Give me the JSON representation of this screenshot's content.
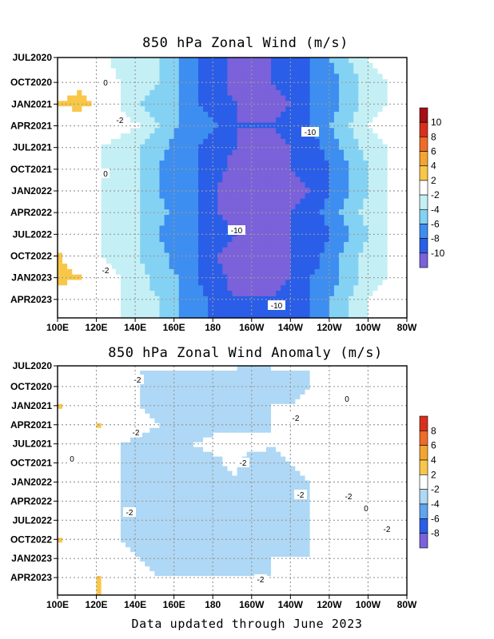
{
  "footer": "Data updated through June 2023",
  "chart_data": [
    {
      "type": "heatmap",
      "title": "850 hPa Zonal Wind (m/s)",
      "x_ticks": [
        "100E",
        "120E",
        "140E",
        "160E",
        "180",
        "160W",
        "140W",
        "120W",
        "100W",
        "80W"
      ],
      "y_ticks": [
        "JUL2020",
        "OCT2020",
        "JAN2021",
        "APR2021",
        "JUL2021",
        "OCT2021",
        "JAN2022",
        "APR2022",
        "JUL2022",
        "OCT2022",
        "JAN2023",
        "APR2023"
      ],
      "colorbar": {
        "labels": [
          "10",
          "8",
          "6",
          "4",
          "2",
          "-2",
          "-4",
          "-6",
          "-8",
          "-10"
        ],
        "colors": [
          "#a50f15",
          "#d7301f",
          "#ef6b28",
          "#f4a531",
          "#f9c748",
          "#ffffff",
          "#c4f0f5",
          "#84d2f3",
          "#3d8ef0",
          "#2a5ee8",
          "#7b61da"
        ]
      },
      "contour_labels": [
        "0",
        "-2",
        "0",
        "-10",
        "-10",
        "-2",
        "-10"
      ],
      "longitudes": [
        100,
        110,
        120,
        130,
        140,
        150,
        160,
        170,
        180,
        190,
        200,
        210,
        220,
        230,
        240,
        250,
        260,
        270,
        280
      ],
      "rows": [
        {
          "month": "JUL2020",
          "u": [
            0,
            0,
            -1,
            -3,
            -3,
            -4,
            -6,
            -8,
            -9,
            -11,
            -11,
            -10,
            -9,
            -8,
            -6,
            -4,
            -2,
            -1,
            0
          ]
        },
        {
          "month": "OCT2020",
          "u": [
            0,
            1,
            0,
            -2,
            -3,
            -4,
            -6,
            -8,
            -9,
            -11,
            -11,
            -10,
            -9,
            -8,
            -7,
            -5,
            -3,
            -2,
            -1
          ]
        },
        {
          "month": "JAN2021",
          "u": [
            2,
            3,
            1,
            -2,
            -4,
            -5,
            -6,
            -8,
            -9,
            -10,
            -11,
            -11,
            -10,
            -8,
            -7,
            -5,
            -3,
            -2,
            -1
          ]
        },
        {
          "month": "APR2021",
          "u": [
            0,
            0,
            0,
            -1,
            -2,
            -4,
            -6,
            -7,
            -8,
            -10,
            -10,
            -10,
            -9,
            -8,
            -6,
            -4,
            -2,
            -1,
            0
          ]
        },
        {
          "month": "JUL2021",
          "u": [
            0,
            -1,
            -2,
            -3,
            -4,
            -5,
            -7,
            -8,
            -9,
            -10,
            -11,
            -11,
            -10,
            -9,
            -7,
            -5,
            -3,
            -2,
            -1
          ]
        },
        {
          "month": "OCT2021",
          "u": [
            0,
            -1,
            -2,
            -3,
            -4,
            -6,
            -7,
            -8,
            -9,
            -11,
            -11,
            -11,
            -10,
            -9,
            -8,
            -6,
            -4,
            -2,
            -1
          ]
        },
        {
          "month": "JAN2022",
          "u": [
            0,
            -1,
            -2,
            -3,
            -4,
            -6,
            -7,
            -8,
            -10,
            -11,
            -12,
            -12,
            -11,
            -10,
            -8,
            -6,
            -4,
            -2,
            -1
          ]
        },
        {
          "month": "APR2022",
          "u": [
            0,
            -1,
            -2,
            -3,
            -4,
            -5,
            -7,
            -8,
            -10,
            -11,
            -11,
            -11,
            -10,
            -9,
            -7,
            -5,
            -3,
            -2,
            -1
          ]
        },
        {
          "month": "JUL2022",
          "u": [
            0,
            -1,
            -2,
            -3,
            -4,
            -6,
            -7,
            -8,
            -9,
            -10,
            -11,
            -11,
            -10,
            -9,
            -8,
            -6,
            -4,
            -2,
            -1
          ]
        },
        {
          "month": "OCT2022",
          "u": [
            2,
            0,
            -2,
            -3,
            -4,
            -5,
            -7,
            -8,
            -10,
            -11,
            -11,
            -11,
            -10,
            -9,
            -7,
            -5,
            -3,
            -2,
            -1
          ]
        },
        {
          "month": "JAN2023",
          "u": [
            3,
            2,
            0,
            -2,
            -3,
            -5,
            -6,
            -8,
            -9,
            -11,
            -11,
            -11,
            -10,
            -8,
            -7,
            -5,
            -3,
            -2,
            -1
          ]
        },
        {
          "month": "APR2023",
          "u": [
            0,
            0,
            -1,
            -2,
            -3,
            -4,
            -6,
            -7,
            -9,
            -10,
            -10,
            -10,
            -9,
            -8,
            -6,
            -4,
            -2,
            -1,
            0
          ]
        }
      ]
    },
    {
      "type": "heatmap",
      "title": "850 hPa Zonal Wind Anomaly (m/s)",
      "x_ticks": [
        "100E",
        "120E",
        "140E",
        "160E",
        "180",
        "160W",
        "140W",
        "120W",
        "100W",
        "80W"
      ],
      "y_ticks": [
        "JUL2020",
        "OCT2020",
        "JAN2021",
        "APR2021",
        "JUL2021",
        "OCT2021",
        "JAN2022",
        "APR2022",
        "JUL2022",
        "OCT2022",
        "JAN2023",
        "APR2023"
      ],
      "colorbar": {
        "labels": [
          "8",
          "6",
          "4",
          "2",
          "-2",
          "-4",
          "-6",
          "-8"
        ],
        "colors": [
          "#d7301f",
          "#ef6b28",
          "#f4a531",
          "#f9c748",
          "#ffffff",
          "#aed8f5",
          "#5fa4ee",
          "#2a5ee8",
          "#7b61da"
        ]
      },
      "contour_labels": [
        "-2",
        "0",
        "-2",
        "-2",
        "0",
        "-2",
        "-2",
        "-2",
        "-2",
        "0",
        "-2",
        "-2"
      ],
      "longitudes": [
        100,
        110,
        120,
        130,
        140,
        150,
        160,
        170,
        180,
        190,
        200,
        210,
        220,
        230,
        240,
        250,
        260,
        270,
        280
      ],
      "rows": [
        {
          "month": "JUL2020",
          "u": [
            0,
            0,
            0,
            -1,
            -2,
            -2,
            -2,
            -2,
            -2,
            -2,
            -3,
            -2,
            -2,
            -2,
            -1,
            0,
            0,
            0,
            0
          ]
        },
        {
          "month": "OCT2020",
          "u": [
            0,
            0,
            0,
            -1,
            -2,
            -3,
            -3,
            -3,
            -3,
            -3,
            -3,
            -3,
            -3,
            -2,
            -1,
            0,
            0,
            0,
            0
          ]
        },
        {
          "month": "JAN2021",
          "u": [
            2,
            0,
            0,
            -1,
            -2,
            -3,
            -3,
            -3,
            -3,
            -3,
            -3,
            -2,
            -2,
            -1,
            0,
            0,
            0,
            1,
            0
          ]
        },
        {
          "month": "APR2021",
          "u": [
            0,
            0,
            2,
            0,
            -1,
            -2,
            -3,
            -3,
            -3,
            -3,
            -3,
            -2,
            -2,
            -2,
            -1,
            0,
            0,
            0,
            0
          ]
        },
        {
          "month": "JUL2021",
          "u": [
            0,
            0,
            -1,
            -2,
            -3,
            -3,
            -3,
            -2,
            -1,
            -1,
            -1,
            -2,
            -1,
            -1,
            -1,
            0,
            0,
            0,
            0
          ]
        },
        {
          "month": "OCT2021",
          "u": [
            0,
            0,
            -1,
            -2,
            -3,
            -3,
            -3,
            -3,
            -3,
            -1,
            -4,
            -3,
            -2,
            -1,
            -2,
            0,
            0,
            0,
            0
          ]
        },
        {
          "month": "JAN2022",
          "u": [
            0,
            0,
            -1,
            -2,
            -3,
            -3,
            -3,
            -3,
            -3,
            -3,
            -4,
            -3,
            -3,
            -2,
            -2,
            -1,
            0,
            0,
            0
          ]
        },
        {
          "month": "APR2022",
          "u": [
            0,
            0,
            -1,
            -2,
            -3,
            -3,
            -4,
            -4,
            -3,
            -3,
            -4,
            -3,
            -3,
            -2,
            -2,
            -1,
            0,
            0,
            0
          ]
        },
        {
          "month": "JUL2022",
          "u": [
            0,
            0,
            -1,
            -2,
            -3,
            -3,
            -3,
            -3,
            -3,
            -3,
            -3,
            -3,
            -3,
            -2,
            -2,
            -1,
            0,
            -1,
            0
          ]
        },
        {
          "month": "OCT2022",
          "u": [
            2,
            0,
            -1,
            -2,
            -3,
            -3,
            -4,
            -4,
            -3,
            -3,
            -4,
            -3,
            -3,
            -2,
            -2,
            -1,
            0,
            -2,
            0
          ]
        },
        {
          "month": "JAN2023",
          "u": [
            0,
            0,
            0,
            -1,
            -2,
            -3,
            -3,
            -3,
            -3,
            -3,
            -3,
            -2,
            -2,
            -2,
            -1,
            -1,
            0,
            -2,
            0
          ]
        },
        {
          "month": "APR2023",
          "u": [
            0,
            0,
            2,
            0,
            -1,
            -2,
            -2,
            -2,
            -2,
            -2,
            -2,
            -2,
            -1,
            -1,
            -1,
            0,
            0,
            0,
            0
          ]
        }
      ]
    }
  ]
}
